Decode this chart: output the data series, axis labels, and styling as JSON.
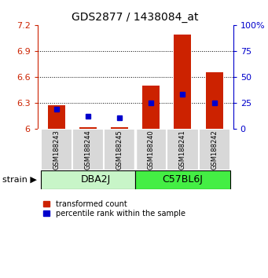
{
  "title": "GDS2877 / 1438084_at",
  "samples": [
    "GSM188243",
    "GSM188244",
    "GSM188245",
    "GSM188240",
    "GSM188241",
    "GSM188242"
  ],
  "group_labels": [
    "DBA2J",
    "C57BL6J"
  ],
  "group_split": 3,
  "group_color_dba": "#c8f5c8",
  "group_color_c57": "#44ee44",
  "transformed_counts": [
    6.27,
    6.02,
    6.02,
    6.5,
    7.09,
    6.65
  ],
  "percentile_ranks": [
    19,
    12,
    11,
    25,
    33,
    25
  ],
  "bar_bottom": 6.0,
  "ylim_left": [
    6.0,
    7.2
  ],
  "ylim_right": [
    0,
    100
  ],
  "yticks_left": [
    6.0,
    6.3,
    6.6,
    6.9,
    7.2
  ],
  "ytick_labels_left": [
    "6",
    "6.3",
    "6.6",
    "6.9",
    "7.2"
  ],
  "yticks_right": [
    0,
    25,
    50,
    75,
    100
  ],
  "ytick_labels_right": [
    "0",
    "25",
    "50",
    "75",
    "100%"
  ],
  "bar_color": "#cc2200",
  "marker_color": "#0000cc",
  "bar_width": 0.55,
  "left_axis_color": "#cc2200",
  "right_axis_color": "#0000cc",
  "strain_label": "strain",
  "legend_items": [
    "transformed count",
    "percentile rank within the sample"
  ],
  "sample_label_bg": "#d8d8d8",
  "sample_label_fontsize": 6.0,
  "group_label_fontsize": 9
}
